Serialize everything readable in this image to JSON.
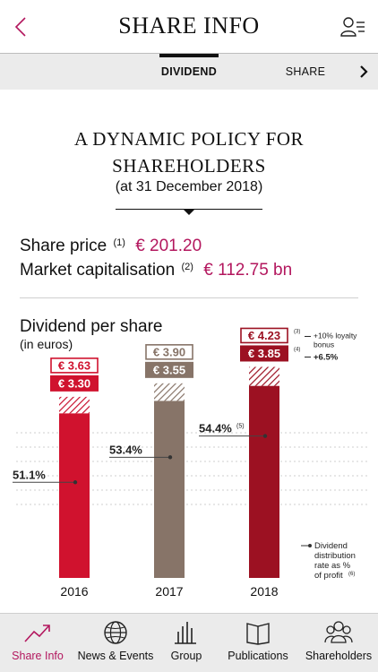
{
  "header": {
    "title": "SHARE INFO"
  },
  "tabs": [
    {
      "label": "DIVIDEND",
      "active": true
    },
    {
      "label": "SHARE PRICE",
      "active": false
    }
  ],
  "headline": {
    "line1": "A DYNAMIC POLICY  FOR",
    "line2": "SHAREHOLDERS",
    "sub": "(at 31 December 2018)"
  },
  "kpis": [
    {
      "label": "Share price",
      "note": "(1)",
      "value": "€ 201.20"
    },
    {
      "label": "Market capitalisation",
      "note": "(2)",
      "value": "€ 112.75 bn"
    }
  ],
  "chart_section": {
    "title": "Dividend per share",
    "subtitle": "(in euros)"
  },
  "chart_data": {
    "type": "bar",
    "categories": [
      "2016",
      "2017",
      "2018"
    ],
    "series": [
      {
        "values": [
          3.3,
          3.55,
          3.85
        ]
      },
      {
        "values": [
          3.63,
          3.9,
          4.23
        ]
      }
    ],
    "value_labels": [
      {
        "total": "€ 3.63",
        "base": "€ 3.30"
      },
      {
        "total": "€ 3.90",
        "base": "€ 3.55"
      },
      {
        "total": "€ 4.23",
        "base": "€ 3.85"
      }
    ],
    "payout_rates": [
      {
        "label": "51.1%",
        "note": ""
      },
      {
        "label": "53.4%",
        "note": ""
      },
      {
        "label": "54.4%",
        "note": "(5)"
      }
    ],
    "bar_colors": [
      "#d0122e",
      "#877468",
      "#9c1122"
    ],
    "annotations": [
      {
        "note": "(3)",
        "text": "+10% loyalty",
        "text2": "bonus"
      },
      {
        "note": "(4)",
        "text": "+6.5%"
      }
    ],
    "legend": {
      "line1": "Dividend",
      "line2": "distribution",
      "line3": "rate as %",
      "line4": "of profit",
      "note": "(6)"
    },
    "grid": true
  },
  "nav": [
    {
      "label": "Share Info",
      "icon": "trending-up-icon",
      "active": true
    },
    {
      "label": "News & Events",
      "icon": "globe-icon",
      "active": false
    },
    {
      "label": "Group",
      "icon": "buildings-icon",
      "active": false
    },
    {
      "label": "Publications",
      "icon": "book-icon",
      "active": false
    },
    {
      "label": "Shareholders",
      "icon": "people-icon",
      "active": false
    }
  ],
  "colors": {
    "accent": "#b3175e",
    "bar_red": "#d0122e",
    "bar_taupe": "#877468",
    "bar_dark_red": "#9c1122"
  }
}
